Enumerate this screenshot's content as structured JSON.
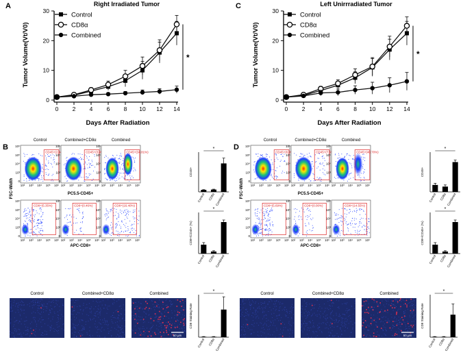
{
  "panels": {
    "a": "A",
    "b": "B",
    "c": "C",
    "d": "D"
  },
  "chart_data": [
    {
      "type": "line",
      "title": "Right Irradiated Tumor",
      "xlabel": "Days After Radiation",
      "ylabel": "Tumor Volume(Vt/V0)",
      "x": [
        0,
        2,
        4,
        6,
        8,
        10,
        12,
        14
      ],
      "xticks": [
        "0",
        "2",
        "4",
        "6",
        "8",
        "10",
        "12",
        "14"
      ],
      "ylim": [
        0,
        30
      ],
      "yticks": [
        "0",
        "10",
        "20",
        "30"
      ],
      "series": [
        {
          "name": "Control",
          "marker": "square",
          "values": [
            1,
            1.6,
            3,
            4.5,
            6.5,
            10,
            16,
            22.5
          ],
          "errors": [
            0.3,
            0.5,
            0.8,
            1.2,
            2,
            3,
            3.5,
            4
          ]
        },
        {
          "name": "CD8α",
          "marker": "open-circle",
          "values": [
            1,
            1.8,
            3.4,
            5.2,
            8,
            11.5,
            16.8,
            25.5
          ],
          "errors": [
            0.3,
            0.5,
            0.8,
            1.2,
            2,
            3,
            3.5,
            3
          ]
        },
        {
          "name": "Combined",
          "marker": "filled-circle",
          "values": [
            1,
            1.3,
            1.8,
            2,
            2.3,
            2.6,
            2.9,
            3.5
          ],
          "errors": [
            0.2,
            0.3,
            0.4,
            0.5,
            0.6,
            0.8,
            0.9,
            1.2
          ]
        }
      ],
      "significance": "*"
    },
    {
      "type": "line",
      "title": "Left Unirrradiated Tumor",
      "xlabel": "Days After Radiation",
      "ylabel": "Tumor Volume(Vt/V0)",
      "x": [
        0,
        2,
        4,
        6,
        8,
        10,
        12,
        14
      ],
      "xticks": [
        "0",
        "2",
        "4",
        "6",
        "8",
        "10",
        "12",
        "14"
      ],
      "ylim": [
        0,
        30
      ],
      "yticks": [
        "0",
        "10",
        "20",
        "30"
      ],
      "series": [
        {
          "name": "Control",
          "marker": "square",
          "values": [
            1,
            1.6,
            3.2,
            5,
            7.5,
            11,
            17,
            22.5
          ],
          "errors": [
            0.3,
            0.5,
            0.8,
            1.2,
            2,
            3,
            3.5,
            4
          ]
        },
        {
          "name": "CD8α",
          "marker": "open-circle",
          "values": [
            1,
            1.8,
            3.8,
            5.6,
            8.5,
            11.3,
            18,
            25
          ],
          "errors": [
            0.3,
            0.5,
            0.8,
            1.2,
            2,
            3,
            3.5,
            3
          ]
        },
        {
          "name": "Combined",
          "marker": "filled-circle",
          "values": [
            1,
            1.4,
            2.4,
            2.6,
            3.4,
            4,
            5,
            6.3
          ],
          "errors": [
            0.3,
            0.5,
            0.9,
            1.1,
            1.4,
            2,
            2.5,
            3
          ]
        }
      ],
      "significance": "*"
    },
    {
      "type": "bar",
      "panel": "B",
      "ylabel": "CD45+",
      "categories": [
        "Control",
        "CD8α",
        "Combined"
      ],
      "values": [
        3,
        3.5,
        43
      ],
      "errors": [
        0.4,
        0.6,
        8
      ],
      "ylim": [
        0,
        60
      ],
      "significance": "*"
    },
    {
      "type": "bar",
      "panel": "B",
      "ylabel": "CD8+/CD45+ (%)",
      "categories": [
        "Control",
        "CD8α",
        "Combined"
      ],
      "values": [
        6.5,
        1.5,
        23
      ],
      "errors": [
        1.5,
        0.6,
        1.5
      ],
      "ylim": [
        0,
        30
      ],
      "significance": "*"
    },
    {
      "type": "bar",
      "panel": "B",
      "ylabel": "CD8 Staining Rate",
      "categories": [
        "Control",
        "CD8α",
        "Combined"
      ],
      "values": [
        0.1,
        0.1,
        6.5
      ],
      "errors": [
        0.05,
        0.05,
        3
      ],
      "ylim": [
        0,
        10
      ],
      "significance": "*"
    },
    {
      "type": "bar",
      "panel": "D",
      "ylabel": "CD45+",
      "categories": [
        "Control",
        "CD8α",
        "Combined"
      ],
      "values": [
        10.5,
        8,
        45
      ],
      "errors": [
        2.5,
        2.5,
        3
      ],
      "ylim": [
        0,
        60
      ],
      "significance": "*"
    },
    {
      "type": "bar",
      "panel": "D",
      "ylabel": "CD8+/CD45+ (%)",
      "categories": [
        "Control",
        "CD8α",
        "Combined"
      ],
      "values": [
        6.5,
        1.5,
        23
      ],
      "errors": [
        1.5,
        0.6,
        1.5
      ],
      "ylim": [
        0,
        30
      ],
      "significance": "*"
    },
    {
      "type": "bar",
      "panel": "D",
      "ylabel": "CD8 Staining Rate",
      "categories": [
        "Control",
        "CD8α",
        "Combined"
      ],
      "values": [
        0.1,
        0.1,
        5.3
      ],
      "errors": [
        0.05,
        0.05,
        2.5
      ],
      "ylim": [
        0,
        10
      ],
      "significance": "*"
    }
  ],
  "flow": {
    "group_titles": [
      "Control",
      "Combined+CD8α",
      "Combined"
    ],
    "ihc_titles": [
      "Control",
      "Combined+CD8α",
      "Combined"
    ],
    "fsc_label": "FSC-Width",
    "cd45_axis": "PC5.5-CD45+",
    "cd8_axis": "APC-CD8+",
    "y_ticks": [
      "10⁶",
      "10⁵",
      "10⁴",
      "10³",
      "0"
    ],
    "x_ticks": [
      "10²",
      "10³",
      "10⁴",
      "10⁵",
      "10⁶"
    ],
    "b_cd45_gates": [
      "CD45+(2.94%)",
      "CD45+(3.45%)",
      "CD45+(34.81%)"
    ],
    "b_cd8_gates": [
      "CD8+(5.35%)",
      "CD8+(0.46%)",
      "CD8+(16.40%)"
    ],
    "d_cd45_gates": [
      "CD45+(6.09%)",
      "CD45+(7.55%)",
      "CD45+(40.70%)"
    ],
    "d_cd8_gates": [
      "CD8+(5.69%)",
      "CD8+(0.00%)",
      "CD8+(14.55%)"
    ],
    "scale_bar": "50 μm"
  },
  "colors": {
    "line": "#111111",
    "gate": "#dd2222",
    "ihc_bg": "#1c2a6a",
    "flow_low": "#1e3cff",
    "flow_mid": "#19c27a",
    "flow_high": "#ffe600",
    "flow_peak": "#ff2a00"
  }
}
